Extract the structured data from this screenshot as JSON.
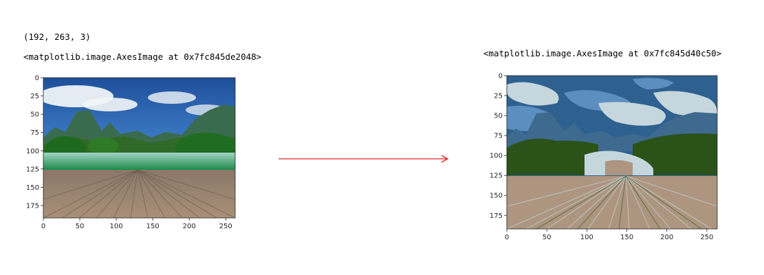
{
  "left": {
    "shape_output": "(192, 263, 3)",
    "repr_output": "<matplotlib.image.AxesImage at 0x7fc845de2048>",
    "x_ticks": [
      "0",
      "50",
      "100",
      "150",
      "200",
      "250"
    ],
    "y_ticks": [
      "0",
      "25",
      "50",
      "75",
      "100",
      "125",
      "150",
      "175"
    ],
    "x_tick_values": [
      0,
      50,
      100,
      150,
      200,
      250
    ],
    "y_tick_values": [
      0,
      25,
      50,
      75,
      100,
      125,
      150,
      175
    ],
    "image_size": [
      263,
      192
    ],
    "image_description_icon": "landscape-photo-icon"
  },
  "right": {
    "repr_output": "<matplotlib.image.AxesImage at 0x7fc845d40c50>",
    "x_ticks": [
      "0",
      "50",
      "100",
      "150",
      "200",
      "250"
    ],
    "y_ticks": [
      "0",
      "25",
      "50",
      "75",
      "100",
      "125",
      "150",
      "175"
    ],
    "x_tick_values": [
      0,
      50,
      100,
      150,
      200,
      250
    ],
    "y_tick_values": [
      0,
      25,
      50,
      75,
      100,
      125,
      150,
      175
    ],
    "image_size": [
      263,
      192
    ],
    "image_description_icon": "quantized-landscape-icon"
  },
  "arrow": {
    "icon": "right-arrow-icon",
    "color": "#e02020"
  },
  "palette": {
    "sky_dark": "#2e6190",
    "sky_mid": "#5b8fbf",
    "sky_light": "#c5d6dc",
    "forest": "#2b5219",
    "deck": "#ad9580",
    "mountain": "#3f6a8f"
  }
}
